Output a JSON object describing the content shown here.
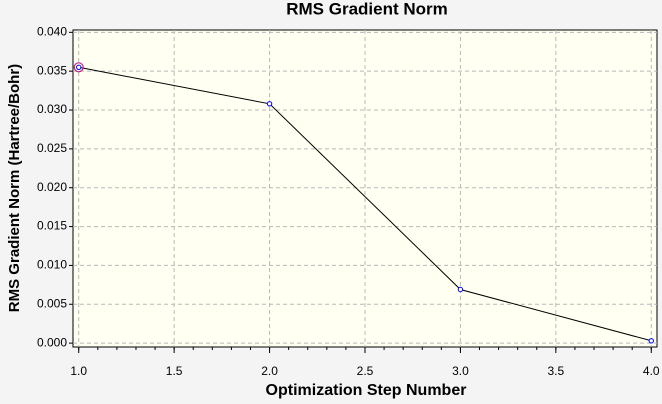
{
  "chart_data": {
    "type": "line",
    "title": "RMS Gradient Norm",
    "x_label": "Optimization Step Number",
    "y_label": "RMS Gradient Norm (Hartree/Bohr)",
    "x": [
      1,
      2,
      3,
      4
    ],
    "series": [
      {
        "color": "#0000ff",
        "line_color": "#000000",
        "values": [
          0.0355,
          0.0308,
          0.0069,
          0.0003
        ]
      }
    ],
    "highlight_index": 0,
    "highlight_color": "#c0208a",
    "xlim": [
      0.97,
      4.03
    ],
    "ylim": [
      -0.0005,
      0.0403
    ],
    "xticks": [
      {
        "value": 1,
        "label": "1.0"
      },
      {
        "value": 1.5,
        "label": "1.5"
      },
      {
        "value": 2,
        "label": "2.0"
      },
      {
        "value": 2.5,
        "label": "2.5"
      },
      {
        "value": 3,
        "label": "3.0"
      },
      {
        "value": 3.5,
        "label": "3.5"
      },
      {
        "value": 4,
        "label": "4.0"
      }
    ],
    "yticks": [
      {
        "value": 0,
        "label": "0.000"
      },
      {
        "value": 0.005,
        "label": "0.005"
      },
      {
        "value": 0.01,
        "label": "0.010"
      },
      {
        "value": 0.015,
        "label": "0.015"
      },
      {
        "value": 0.02,
        "label": "0.020"
      },
      {
        "value": 0.025,
        "label": "0.025"
      },
      {
        "value": 0.03,
        "label": "0.030"
      },
      {
        "value": 0.035,
        "label": "0.035"
      },
      {
        "value": 0.04,
        "label": "0.040"
      }
    ],
    "grid": true
  }
}
